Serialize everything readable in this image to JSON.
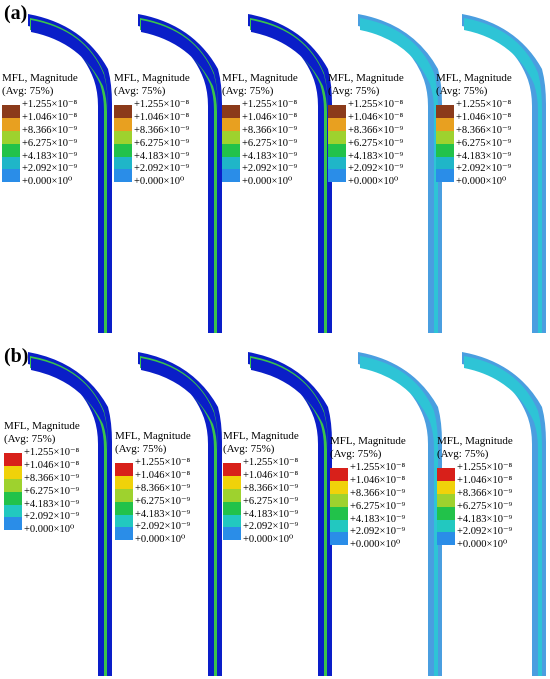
{
  "panels": [
    {
      "label": "(a)",
      "cases": [
        {
          "fill_pattern": "mixed",
          "ramp_set": "a"
        },
        {
          "fill_pattern": "mixed",
          "ramp_set": "a"
        },
        {
          "fill_pattern": "mixed",
          "ramp_set": "a"
        },
        {
          "fill_pattern": "light",
          "ramp_set": "a"
        },
        {
          "fill_pattern": "light",
          "ramp_set": "a"
        }
      ]
    },
    {
      "label": "(b)",
      "cases": [
        {
          "fill_pattern": "dark",
          "ramp_set": "b"
        },
        {
          "fill_pattern": "dark",
          "ramp_set": "b"
        },
        {
          "fill_pattern": "dark",
          "ramp_set": "b"
        },
        {
          "fill_pattern": "light",
          "ramp_set": "b"
        },
        {
          "fill_pattern": "light",
          "ramp_set": "b"
        }
      ]
    }
  ],
  "legend": {
    "title": "MFL, Magnitude",
    "subtitle": "(Avg: 75%)",
    "values": [
      "+1.255×10⁻⁸",
      "+1.046×10⁻⁸",
      "+8.366×10⁻⁹",
      "+6.275×10⁻⁹",
      "+4.183×10⁻⁹",
      "+2.092×10⁻⁹",
      "+0.000×10⁰"
    ],
    "colors_a": [
      "#8b3a1a",
      "#e8a020",
      "#9ed22e",
      "#22c24a",
      "#1fb6c8",
      "#2a8de8",
      "#0019d8"
    ],
    "colors_b": [
      "#d8201a",
      "#f0d20a",
      "#9ed22e",
      "#22c24a",
      "#22c8c0",
      "#2a8de8",
      "#0019d8"
    ]
  },
  "field_colors": {
    "dark_blue": "#0a1ec8",
    "light_blue": "#4a9ee0",
    "green": "#39c44b",
    "cyan": "#2ec4d6"
  }
}
